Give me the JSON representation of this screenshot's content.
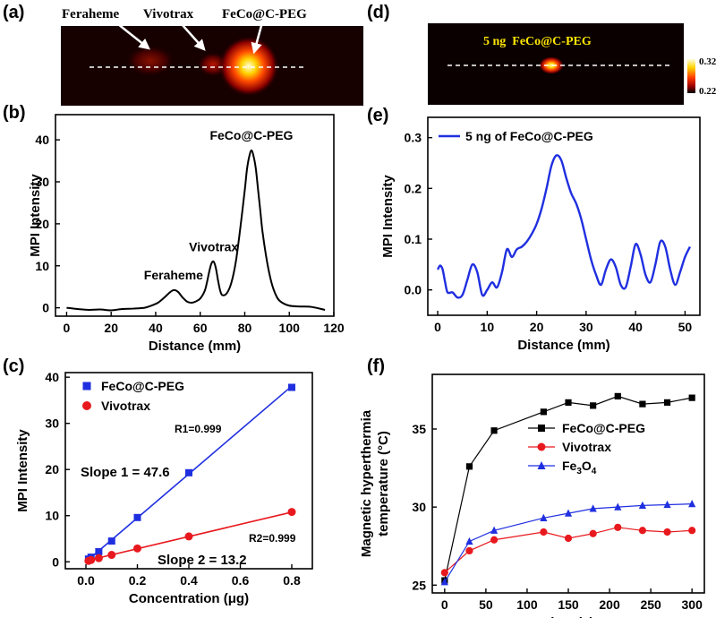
{
  "chart_data": [
    {
      "panel": "(a)",
      "type": "heatmap",
      "labels": [
        "Feraheme",
        "Vivotrax",
        "FeCo@C-PEG"
      ],
      "spots": [
        {
          "name": "Feraheme",
          "pos_mm": 48,
          "intensity": 4
        },
        {
          "name": "Vivotrax",
          "pos_mm": 66,
          "intensity": 11
        },
        {
          "name": "FeCo@C-PEG",
          "pos_mm": 83,
          "intensity": 37
        }
      ]
    },
    {
      "panel": "(b)",
      "type": "line",
      "xlabel": "Distance (mm)",
      "ylabel": "MPI Intensity",
      "xlim": [
        -5,
        120
      ],
      "ylim": [
        -2,
        46
      ],
      "xticks": [
        0,
        20,
        40,
        60,
        80,
        100,
        120
      ],
      "yticks": [
        0,
        10,
        20,
        30,
        40
      ],
      "x": [
        0,
        5,
        10,
        15,
        20,
        25,
        30,
        35,
        38,
        41,
        44,
        46,
        48,
        50,
        52,
        54,
        56,
        58,
        60,
        62,
        63,
        64,
        65,
        66,
        67,
        68,
        69,
        70,
        72,
        74,
        76,
        78,
        80,
        81,
        82,
        83,
        84,
        85,
        86,
        87,
        88,
        90,
        92,
        94,
        96,
        100,
        105,
        110,
        116
      ],
      "values": [
        0,
        -0.3,
        -0.5,
        -0.4,
        -0.6,
        -0.3,
        -0.2,
        0,
        0.5,
        1.2,
        2.5,
        3.5,
        4.2,
        3.8,
        2.5,
        1.5,
        1.2,
        1.5,
        2.2,
        4,
        6,
        8.5,
        10.5,
        11,
        9.5,
        6.5,
        4,
        3,
        3.5,
        6,
        11,
        19,
        28,
        33,
        36,
        37.5,
        36,
        33,
        28,
        23,
        18,
        11,
        6,
        3,
        1.5,
        0.5,
        0.3,
        0.2,
        -0.5
      ],
      "annotations": [
        "Feraheme",
        "Vivotrax",
        "FeCo@C-PEG"
      ]
    },
    {
      "panel": "(c)",
      "type": "scatter",
      "xlabel": "Concentration (μg)",
      "ylabel": "MPI Intensity",
      "xlim": [
        -0.08,
        0.88
      ],
      "ylim": [
        -1.5,
        41
      ],
      "xticks": [
        0.0,
        0.2,
        0.4,
        0.6,
        0.8
      ],
      "yticks": [
        0,
        10,
        20,
        30,
        40
      ],
      "series": [
        {
          "name": "FeCo@C-PEG",
          "color": "#1f2fe0",
          "marker": "square",
          "x": [
            0.01,
            0.02,
            0.05,
            0.1,
            0.2,
            0.4,
            0.8
          ],
          "values": [
            0.6,
            1.0,
            2.2,
            4.5,
            9.6,
            19.3,
            37.8
          ]
        },
        {
          "name": "Vivotrax",
          "color": "#e8191e",
          "marker": "circle",
          "x": [
            0.01,
            0.02,
            0.05,
            0.1,
            0.2,
            0.4,
            0.8
          ],
          "values": [
            0.2,
            0.4,
            0.8,
            1.5,
            2.9,
            5.5,
            10.8
          ]
        }
      ],
      "fits": [
        {
          "name": "FeCo@C-PEG",
          "slope": 47.6,
          "intercept": 0
        },
        {
          "name": "Vivotrax",
          "slope": 13.2,
          "intercept": 0.2
        }
      ],
      "annotations": {
        "r1": "R1=0.999",
        "slope1": "Slope 1 = 47.6",
        "r2": "R2=0.999",
        "slope2": "Slope 2 = 13.2"
      }
    },
    {
      "panel": "(d)",
      "type": "heatmap",
      "label": "5 ng  FeCo@C-PEG",
      "colorbar_max": "0.32",
      "colorbar_min": "0.22"
    },
    {
      "panel": "(e)",
      "type": "line",
      "xlabel": "Distance (mm)",
      "ylabel": "MPI Intensity",
      "xlim": [
        -2,
        53
      ],
      "ylim": [
        -0.05,
        0.34
      ],
      "xticks": [
        0,
        10,
        20,
        30,
        40,
        50
      ],
      "yticks": [
        0.0,
        0.1,
        0.2,
        0.3
      ],
      "legend": "5 ng of FeCo@C-PEG",
      "x": [
        0,
        0.5,
        1,
        1.5,
        2,
        3,
        4,
        5,
        6,
        7,
        8,
        9,
        10,
        11,
        12,
        13,
        14,
        15,
        16,
        17,
        18,
        19,
        20,
        21,
        22,
        23,
        24,
        25,
        26,
        27,
        28,
        29,
        30,
        31,
        32,
        33,
        34,
        35,
        36,
        37,
        38,
        39,
        40,
        41,
        42,
        43,
        44,
        45,
        46,
        47,
        48,
        49,
        50,
        51
      ],
      "values": [
        0.04,
        0.048,
        0.04,
        0.015,
        -0.005,
        -0.005,
        -0.015,
        -0.01,
        0.02,
        0.05,
        0.035,
        -0.01,
        0,
        0.015,
        0.005,
        0.035,
        0.08,
        0.065,
        0.08,
        0.085,
        0.095,
        0.11,
        0.13,
        0.16,
        0.2,
        0.245,
        0.265,
        0.255,
        0.22,
        0.19,
        0.17,
        0.14,
        0.1,
        0.06,
        0.03,
        0.01,
        0.04,
        0.06,
        0.045,
        0.01,
        0.005,
        0.045,
        0.09,
        0.07,
        0.03,
        0.015,
        0.05,
        0.095,
        0.085,
        0.04,
        0.01,
        0.035,
        0.065,
        0.085
      ]
    },
    {
      "panel": "(f)",
      "type": "line",
      "xlabel": "Time (s)",
      "ylabel": "Magnetic hyperthermia temperature (°C)",
      "ylabel_lines": [
        "Magnetic hyperthermia",
        "temperature (°C)"
      ],
      "xlim": [
        -15,
        315
      ],
      "ylim": [
        24.5,
        38.5
      ],
      "xticks": [
        0,
        50,
        100,
        150,
        200,
        250,
        300
      ],
      "yticks": [
        25,
        30,
        35
      ],
      "x": [
        0,
        30,
        60,
        120,
        150,
        180,
        210,
        240,
        270,
        300
      ],
      "series": [
        {
          "name": "FeCo@C-PEG",
          "color": "#000000",
          "marker": "square",
          "values": [
            25.3,
            32.6,
            34.9,
            36.1,
            36.7,
            36.5,
            37.1,
            36.6,
            36.7,
            37.0
          ]
        },
        {
          "name": "Vivotrax",
          "color": "#e8191e",
          "marker": "circle",
          "values": [
            25.8,
            27.2,
            27.9,
            28.4,
            28.0,
            28.3,
            28.7,
            28.5,
            28.4,
            28.5
          ]
        },
        {
          "name": "Fe3O4",
          "color": "#1f2fe0",
          "marker": "triangle",
          "values": [
            25.2,
            27.8,
            28.5,
            29.3,
            29.6,
            29.9,
            30.0,
            30.1,
            30.15,
            30.2
          ]
        }
      ]
    }
  ],
  "panel_labels": [
    "(a)",
    "(b)",
    "(c)",
    "(d)",
    "(e)",
    "(f)"
  ]
}
